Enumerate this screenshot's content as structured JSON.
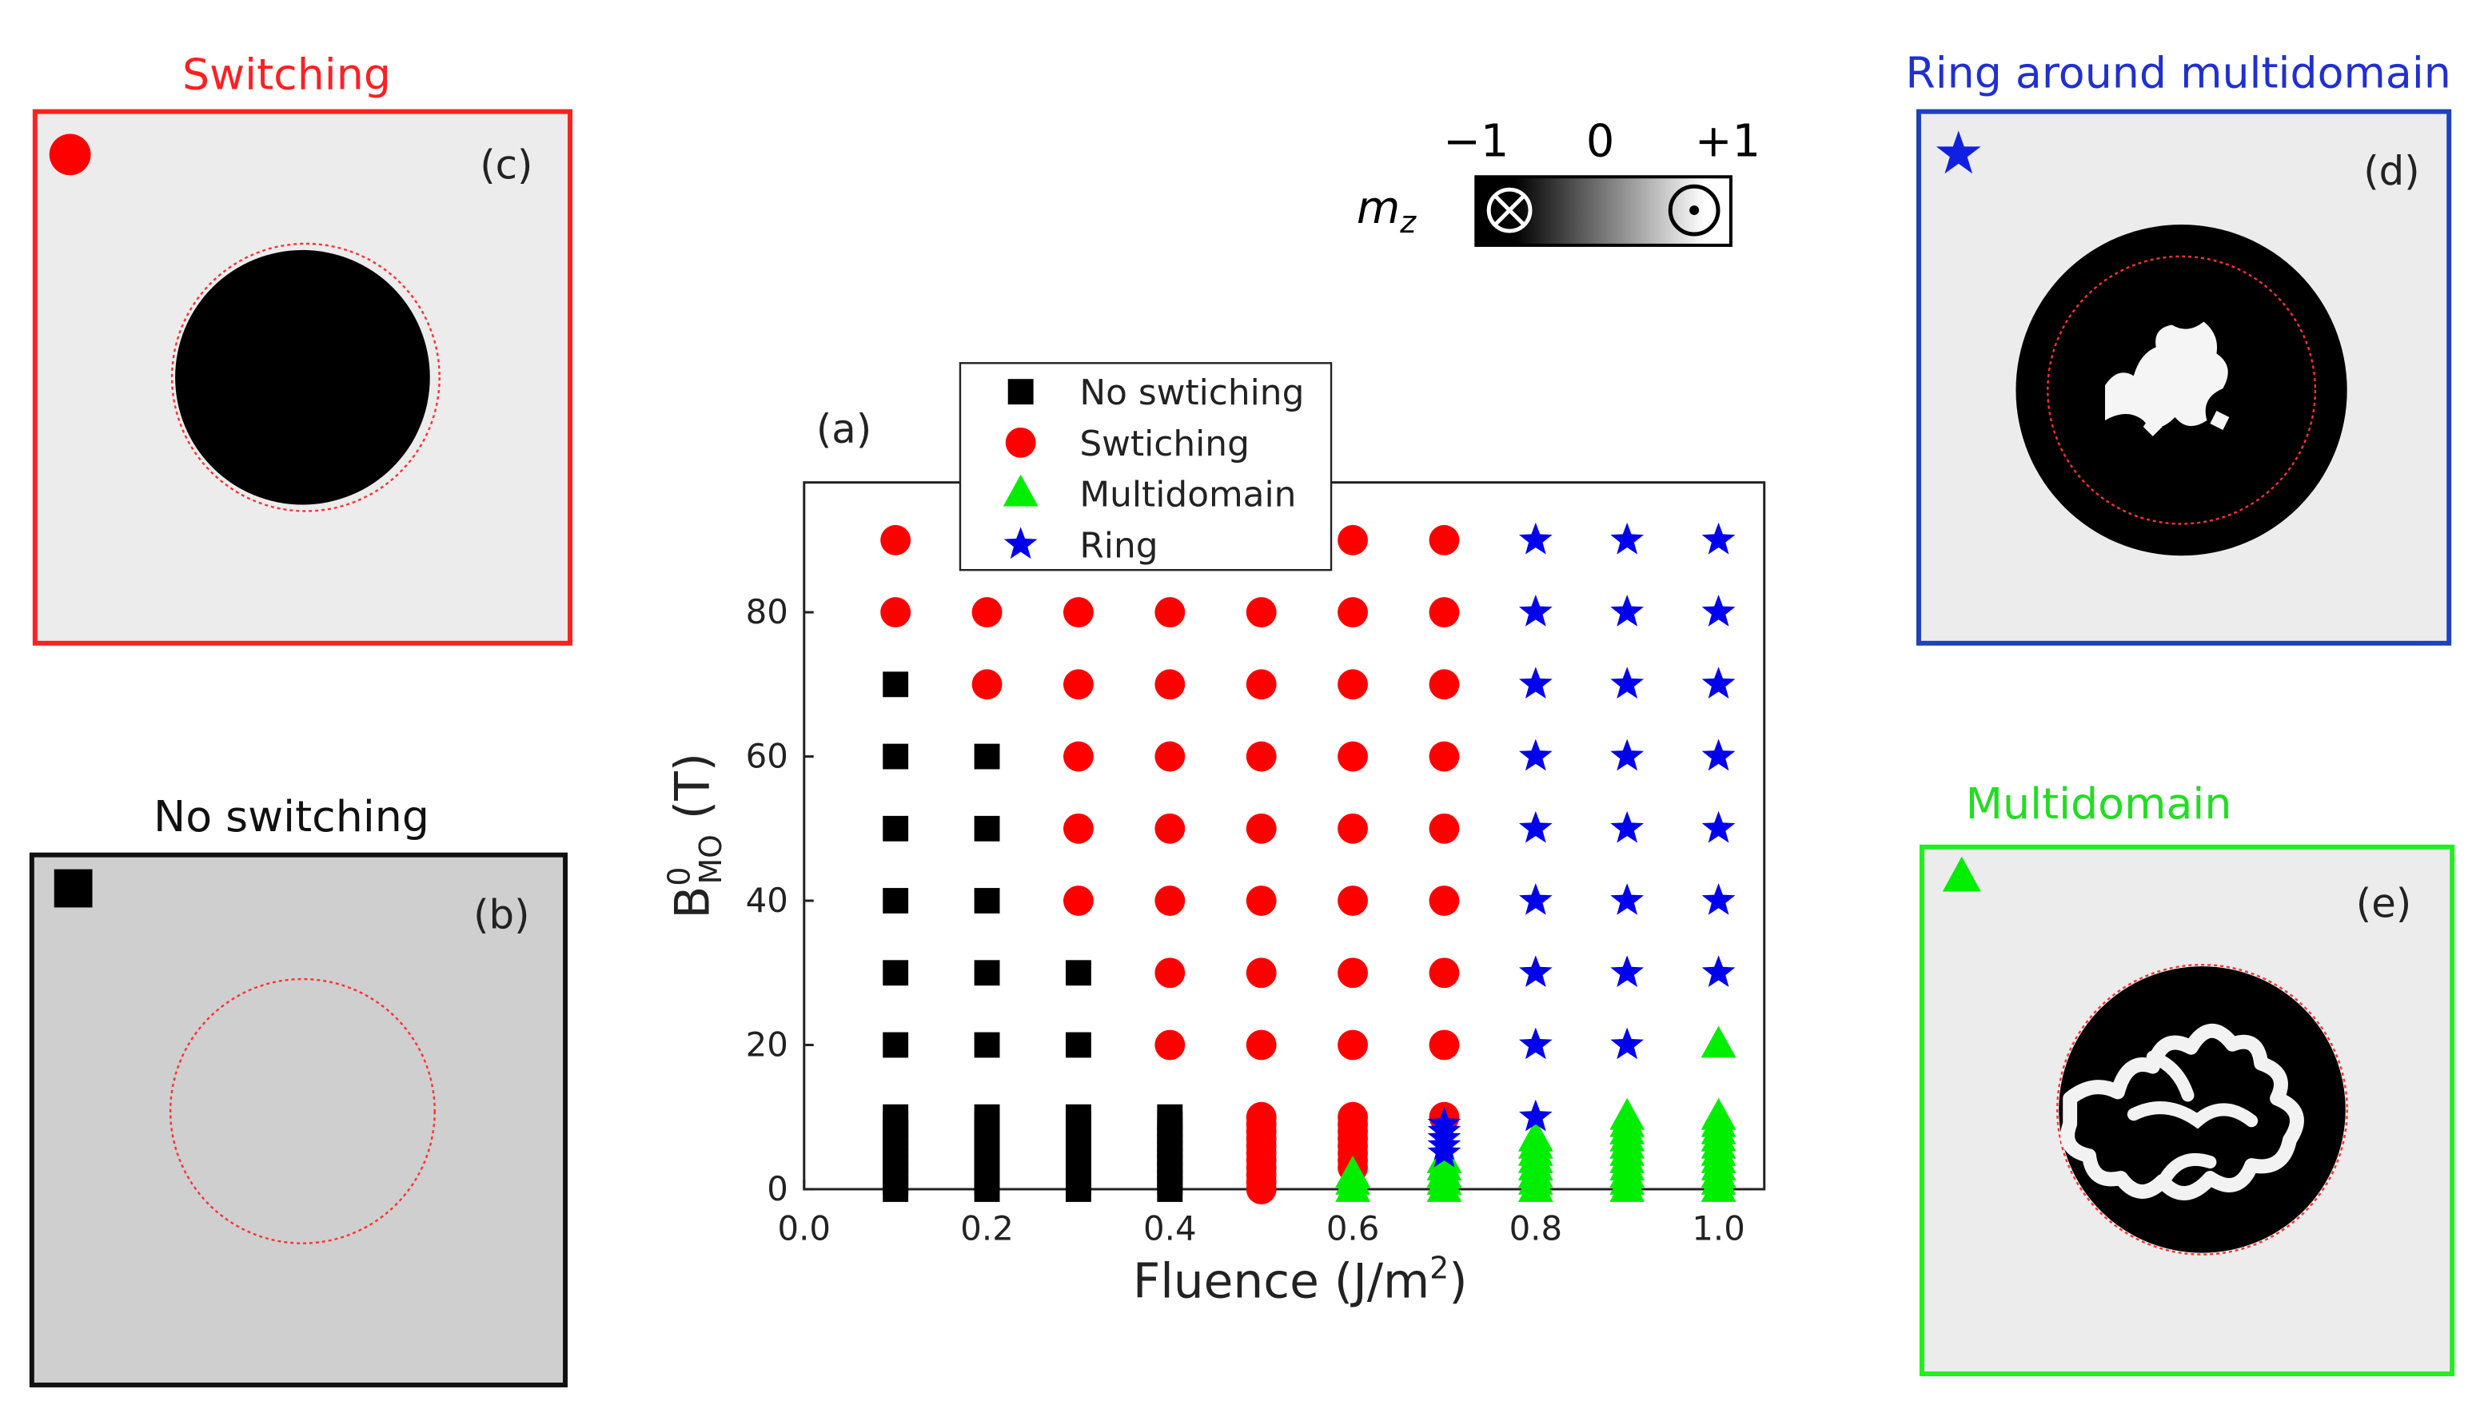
{
  "chart_data": {
    "type": "scatter",
    "panel_label": "(a)",
    "xlabel": {
      "text": "Fluence (J/m",
      "sup": "2",
      "end": ")"
    },
    "ylabel": {
      "base": "B",
      "sup": "0",
      "sub": "MO",
      "unit": " (T)"
    },
    "xlim": [
      0,
      1.05
    ],
    "ylim": [
      0,
      98
    ],
    "xticks": [
      {
        "value": 0,
        "label": "0.0"
      },
      0.2,
      0.4,
      0.6,
      0.8,
      {
        "value": 1,
        "label": "1.0"
      }
    ],
    "yticks": [
      0,
      20,
      40,
      60,
      80
    ],
    "legend": "top-left",
    "series": [
      {
        "name": "No swtiching",
        "color": "#000000",
        "marker": "square",
        "x": [
          0.1,
          0.1,
          0.1,
          0.1,
          0.1,
          0.1,
          0.1,
          0.1,
          0.1,
          0.1,
          0.1,
          0.1,
          0.1,
          0.1,
          0.1,
          0.1,
          0.1,
          0.2,
          0.2,
          0.2,
          0.2,
          0.2,
          0.2,
          0.2,
          0.2,
          0.2,
          0.2,
          0.2,
          0.2,
          0.2,
          0.2,
          0.2,
          0.2,
          0.3,
          0.3,
          0.3,
          0.3,
          0.3,
          0.3,
          0.3,
          0.3,
          0.3,
          0.3,
          0.3,
          0.3,
          0.3,
          0.4,
          0.4,
          0.4,
          0.4,
          0.4,
          0.4,
          0.4,
          0.4,
          0.4,
          0.4,
          0.4
        ],
        "y": [
          0,
          1,
          2,
          3,
          4,
          5,
          6,
          7,
          8,
          9,
          10,
          20,
          30,
          40,
          50,
          60,
          70,
          0,
          1,
          2,
          3,
          4,
          5,
          6,
          7,
          8,
          9,
          10,
          20,
          30,
          40,
          50,
          60,
          0,
          1,
          2,
          3,
          4,
          5,
          6,
          7,
          8,
          9,
          10,
          20,
          30,
          0,
          1,
          2,
          3,
          4,
          5,
          6,
          7,
          8,
          9,
          10
        ]
      },
      {
        "name": "Swtiching",
        "color": "#ff0000",
        "marker": "circle",
        "x": [
          0.1,
          0.1,
          0.2,
          0.2,
          0.3,
          0.3,
          0.3,
          0.3,
          0.3,
          0.4,
          0.4,
          0.4,
          0.4,
          0.4,
          0.4,
          0.4,
          0.5,
          0.5,
          0.5,
          0.5,
          0.5,
          0.5,
          0.5,
          0.5,
          0.5,
          0.5,
          0.5,
          0.5,
          0.5,
          0.5,
          0.5,
          0.5,
          0.5,
          0.5,
          0.6,
          0.6,
          0.6,
          0.6,
          0.6,
          0.6,
          0.6,
          0.6,
          0.6,
          0.6,
          0.6,
          0.6,
          0.6,
          0.6,
          0.6,
          0.6,
          0.7,
          0.7,
          0.7,
          0.7,
          0.7,
          0.7,
          0.7,
          0.7,
          0.7
        ],
        "y": [
          80,
          90,
          70,
          80,
          40,
          50,
          60,
          70,
          80,
          20,
          30,
          40,
          50,
          60,
          70,
          80,
          0,
          1,
          2,
          3,
          4,
          5,
          6,
          7,
          8,
          9,
          10,
          20,
          30,
          40,
          50,
          60,
          70,
          80,
          3,
          4,
          5,
          6,
          7,
          8,
          9,
          10,
          20,
          30,
          40,
          50,
          60,
          70,
          80,
          90,
          10,
          20,
          30,
          40,
          50,
          60,
          70,
          80,
          90
        ]
      },
      {
        "name": "Multidomain",
        "color": "#00ee00",
        "marker": "triangle",
        "x": [
          0.6,
          0.6,
          0.6,
          0.7,
          0.7,
          0.7,
          0.7,
          0.7,
          0.8,
          0.8,
          0.8,
          0.8,
          0.8,
          0.8,
          0.8,
          0.8,
          0.9,
          0.9,
          0.9,
          0.9,
          0.9,
          0.9,
          0.9,
          0.9,
          0.9,
          0.9,
          0.9,
          1,
          1,
          1,
          1,
          1,
          1,
          1,
          1,
          1,
          1,
          1,
          1
        ],
        "y": [
          0,
          1,
          2,
          0,
          1,
          2,
          3,
          4,
          0,
          1,
          2,
          3,
          4,
          5,
          6,
          7,
          0,
          1,
          2,
          3,
          4,
          5,
          6,
          7,
          8,
          9,
          10,
          0,
          1,
          2,
          3,
          4,
          5,
          6,
          7,
          8,
          9,
          10,
          20
        ]
      },
      {
        "name": "Ring",
        "color": "#0000ee",
        "marker": "star",
        "x": [
          0.7,
          0.7,
          0.7,
          0.7,
          0.7,
          0.8,
          0.8,
          0.8,
          0.8,
          0.8,
          0.8,
          0.8,
          0.8,
          0.8,
          0.9,
          0.9,
          0.9,
          0.9,
          0.9,
          0.9,
          0.9,
          0.9,
          1,
          1,
          1,
          1,
          1,
          1,
          1
        ],
        "y": [
          5,
          6,
          7,
          8,
          9,
          10,
          20,
          30,
          40,
          50,
          60,
          70,
          80,
          90,
          20,
          30,
          40,
          50,
          60,
          70,
          80,
          90,
          30,
          40,
          50,
          60,
          70,
          80,
          90
        ]
      }
    ]
  },
  "colorbar": {
    "label": "m",
    "sub": "z",
    "ticks": [
      "−1",
      "0",
      "+1"
    ]
  },
  "panels": [
    {
      "title": "Switching",
      "label": "(c)"
    },
    {
      "title": "No switching",
      "label": "(b)"
    },
    {
      "title": "Ring around multidomain",
      "label": "(d)"
    },
    {
      "title": "Multidomain",
      "label": "(e)"
    }
  ]
}
